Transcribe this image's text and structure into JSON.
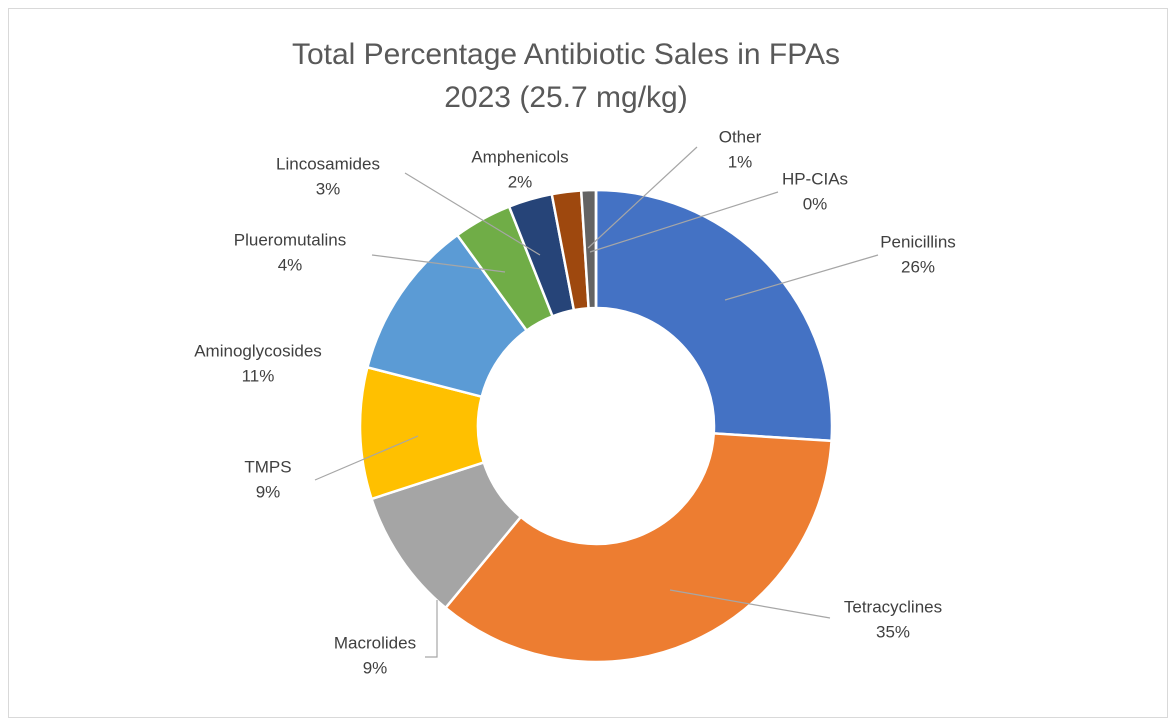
{
  "chart_data": {
    "type": "donut",
    "title": [
      "Total Percentage Antibiotic Sales in FPAs",
      "2023 (25.7 mg/kg)"
    ],
    "categories": [
      "Penicillins",
      "Tetracyclines",
      "Macrolides",
      "TMPS",
      "Aminoglycosides",
      "Plueromutalins",
      "Lincosamides",
      "Amphenicols",
      "Other",
      "HP-CIAs"
    ],
    "values": [
      26,
      35,
      9,
      9,
      11,
      4,
      3,
      2,
      1,
      0
    ],
    "value_labels": [
      "26%",
      "35%",
      "9%",
      "9%",
      "11%",
      "4%",
      "3%",
      "2%",
      "1%",
      "0%"
    ],
    "colors": [
      "#4472c4",
      "#ed7d31",
      "#a5a5a5",
      "#ffc000",
      "#5b9bd5",
      "#70ad47",
      "#264478",
      "#9e480e",
      "#636363",
      "#997300"
    ]
  }
}
